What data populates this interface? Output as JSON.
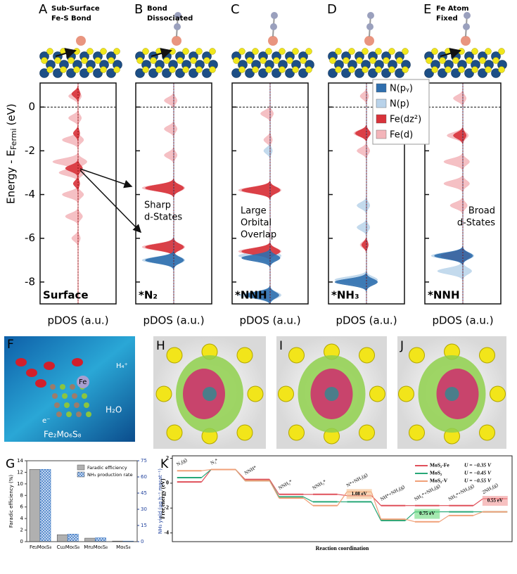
{
  "top_panels": [
    {
      "letter": "A",
      "caption": [
        "Sub-Surface",
        "Fe-S Bond"
      ],
      "state": "Surface"
    },
    {
      "letter": "B",
      "caption": [
        "Bond",
        "Dissociated"
      ],
      "state": "*N₂"
    },
    {
      "letter": "C",
      "state": "*NNH"
    },
    {
      "letter": "D",
      "state": "*NH₃"
    },
    {
      "letter": "E",
      "caption": [
        "Fe Atom",
        "Fixed"
      ],
      "state": "*NNH"
    }
  ],
  "pdos": {
    "type": "pdos",
    "ylabel": "Energy - E",
    "ylabel_sub": "Fermi",
    "ylabel_unit": "(eV)",
    "xlabel": "pDOS (a.u.)",
    "ylim": [
      -9,
      1.1
    ],
    "yticks": [
      0,
      -2,
      -4,
      -6,
      -8
    ],
    "series": [
      {
        "name": "N(pᵧ)",
        "color": "#2f6fae"
      },
      {
        "name": "N(p)",
        "color": "#b9d3ea"
      },
      {
        "name": "Fe(dz²)",
        "color": "#d8323a"
      },
      {
        "name": "Fe(d)",
        "color": "#f3b5ba"
      }
    ],
    "panels": [
      {
        "peaks": [
          [],
          [],
          [
            [
              -2.8,
              0.4
            ],
            [
              -1.2,
              0.15
            ],
            [
              -3.5,
              0.15
            ],
            [
              0.6,
              0.2
            ]
          ],
          [
            [
              -0.5,
              0.3
            ],
            [
              -1.5,
              0.5
            ],
            [
              -2.5,
              0.8
            ],
            [
              -3,
              0.6
            ],
            [
              -4,
              0.5
            ],
            [
              -5,
              0.4
            ],
            [
              -6,
              0.2
            ],
            [
              0.5,
              0.3
            ]
          ]
        ]
      },
      {
        "peaks": [
          [
            [
              -7,
              0.9
            ]
          ],
          [
            [
              -7,
              1
            ],
            [
              -6.3,
              0.3
            ]
          ],
          [
            [
              -3.7,
              0.9
            ],
            [
              -6.4,
              0.9
            ]
          ],
          [
            [
              -3.7,
              1
            ],
            [
              -6.4,
              1
            ],
            [
              -1,
              0.3
            ],
            [
              -2.2,
              0.3
            ],
            [
              0.3,
              0.3
            ]
          ]
        ],
        "annotation": [
          "Sharp",
          "d-States"
        ]
      },
      {
        "peaks": [
          [
            [
              -6.9,
              0.9
            ],
            [
              -8.6,
              0.8
            ]
          ],
          [
            [
              -6.8,
              1
            ],
            [
              -8.6,
              1
            ],
            [
              -2,
              0.2
            ]
          ],
          [
            [
              -3.8,
              0.9
            ],
            [
              -6.6,
              0.9
            ]
          ],
          [
            [
              -3.8,
              1
            ],
            [
              -6.6,
              1
            ],
            [
              -1.5,
              0.2
            ],
            [
              -0.3,
              0.3
            ]
          ]
        ],
        "annotation": [
          "Large",
          "Orbital",
          "Overlap"
        ]
      },
      {
        "peaks": [
          [
            [
              -8,
              1
            ]
          ],
          [
            [
              -4.5,
              0.3
            ],
            [
              -5.5,
              0.3
            ],
            [
              -7.9,
              1
            ]
          ],
          [
            [
              -1.2,
              0.35
            ],
            [
              -6.3,
              0.15
            ]
          ],
          [
            [
              -1.2,
              0.4
            ],
            [
              -2,
              0.3
            ],
            [
              -6.3,
              0.2
            ],
            [
              0.5,
              0.2
            ]
          ]
        ]
      },
      {
        "peaks": [
          [
            [
              -6.8,
              0.9
            ]
          ],
          [
            [
              -6.8,
              1
            ],
            [
              -7.5,
              0.8
            ]
          ],
          [
            [
              -6.8,
              0.7
            ],
            [
              -1.3,
              0.3
            ]
          ],
          [
            [
              -2.5,
              0.6
            ],
            [
              -3.5,
              0.6
            ],
            [
              -4.5,
              0.4
            ],
            [
              -1.3,
              0.5
            ],
            [
              -6.8,
              0.8
            ],
            [
              0.4,
              0.3
            ]
          ]
        ],
        "annotation": [
          "Broad",
          "d-States"
        ]
      }
    ]
  },
  "figure_F": {
    "letter": "F",
    "labels": [
      "Fe",
      "H₂O",
      "e⁻",
      "H₄⁺"
    ],
    "caption": "Fe₂Mo₆S₈"
  },
  "figure_HIJ": {
    "letters": [
      "H",
      "I",
      "J"
    ]
  },
  "chart_G": {
    "type": "bar",
    "letter": "G",
    "categories": [
      "Fe₂Mo₆S₈",
      "Cu₂Mo₆S₈",
      "Mn₂Mo₆S₈",
      "Mo₆S₈"
    ],
    "ylabel": "Faradic efficiency (%)",
    "y2label": "NH₃ yield (μg h⁻¹ mgcat⁻¹)",
    "series": [
      {
        "name": "Faradic efficiency",
        "color": "#b0b0b0",
        "values": [
          12.5,
          1.2,
          0.6,
          0.1
        ]
      },
      {
        "name": "NH₃ production rate",
        "color": "#2f6fc0",
        "values": [
          67,
          7,
          3.5,
          0.5
        ],
        "axis": "y2"
      }
    ],
    "ylim": [
      0,
      14
    ],
    "yticks": [
      0,
      2,
      4,
      6,
      8,
      10,
      12,
      14
    ],
    "y2lim": [
      0,
      75
    ],
    "y2ticks": [
      0,
      15,
      30,
      45,
      60,
      75
    ]
  },
  "chart_K": {
    "type": "levels",
    "letter": "K",
    "ylabel": "Free energy (eV)",
    "xlabel": "Reaction coordination",
    "categories": [
      "N₂(g)",
      "N₂*",
      "NNH*",
      "NNH₂*",
      "NNH₃*",
      "N*+NH₃(g)",
      "NH*+NH₃(g)",
      "NH₂*+NH₃(g)",
      "NH₃*+NH₃(g)",
      "2NH₃(g)"
    ],
    "series": [
      {
        "name": "MoS₂-Fe",
        "potential": "U = −0.35 V",
        "color": "#e0505a",
        "values": [
          0.1,
          1.1,
          0.3,
          -0.9,
          -0.9,
          -1.0,
          -1.8,
          -1.8,
          -1.8,
          -1.25
        ]
      },
      {
        "name": "MoS₂",
        "potential": "U = −0.45 V",
        "color": "#27a878",
        "values": [
          0.45,
          1.1,
          0.2,
          -1.1,
          -1.5,
          -1.5,
          -3.0,
          -2.3,
          -2.3,
          -2.3
        ]
      },
      {
        "name": "MoS₂-V",
        "potential": "U = −0.55 V",
        "color": "#f0a078",
        "values": [
          1.0,
          1.1,
          0.2,
          -1.2,
          -1.8,
          -0.7,
          -2.9,
          -3.1,
          -2.6,
          -2.3
        ]
      }
    ],
    "annotations": [
      "1.08 eV",
      "0.75 eV",
      "0.55 eV"
    ],
    "ylim": [
      -4.7,
      2.2
    ],
    "yticks": [
      -4,
      -2,
      0,
      2
    ]
  }
}
